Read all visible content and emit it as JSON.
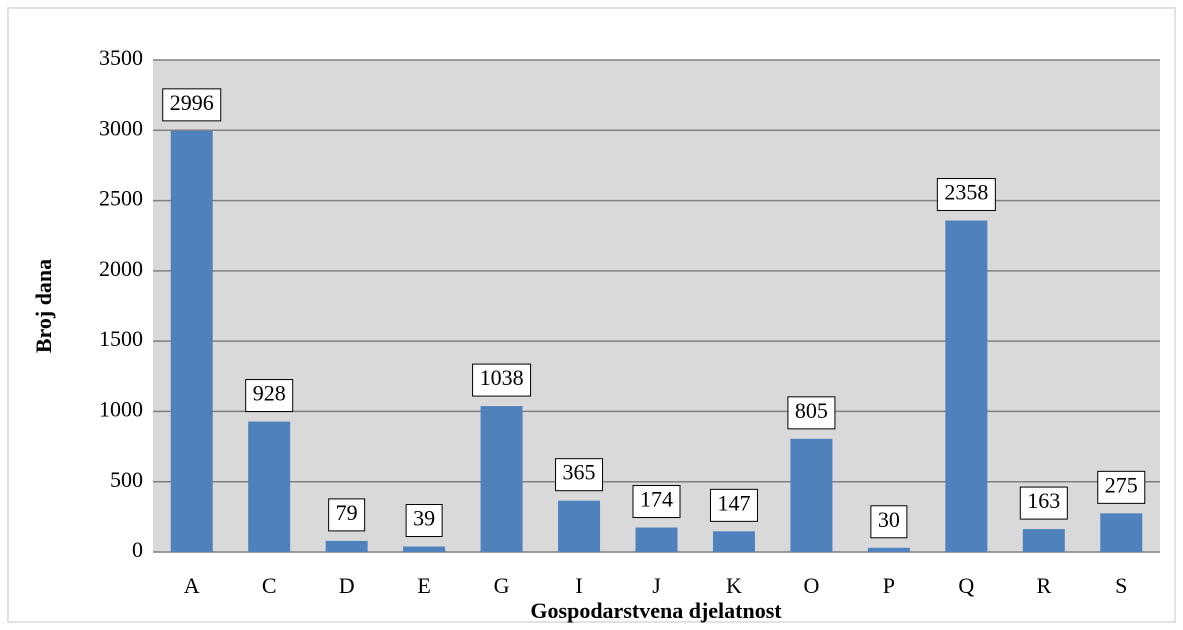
{
  "chart_data": {
    "type": "bar",
    "categories": [
      "A",
      "C",
      "D",
      "E",
      "G",
      "I",
      "J",
      "K",
      "O",
      "P",
      "Q",
      "R",
      "S"
    ],
    "values": [
      2996,
      928,
      79,
      39,
      1038,
      365,
      174,
      147,
      805,
      30,
      2358,
      163,
      275
    ],
    "color": "#4f81bd",
    "x_label": "Gospodarstvena djelatnost",
    "y_label": "Broj dana",
    "ylim": [
      0,
      3500
    ],
    "yticks": [
      0,
      500,
      1000,
      1500,
      2000,
      2500,
      3000,
      3500
    ],
    "grid": true
  }
}
